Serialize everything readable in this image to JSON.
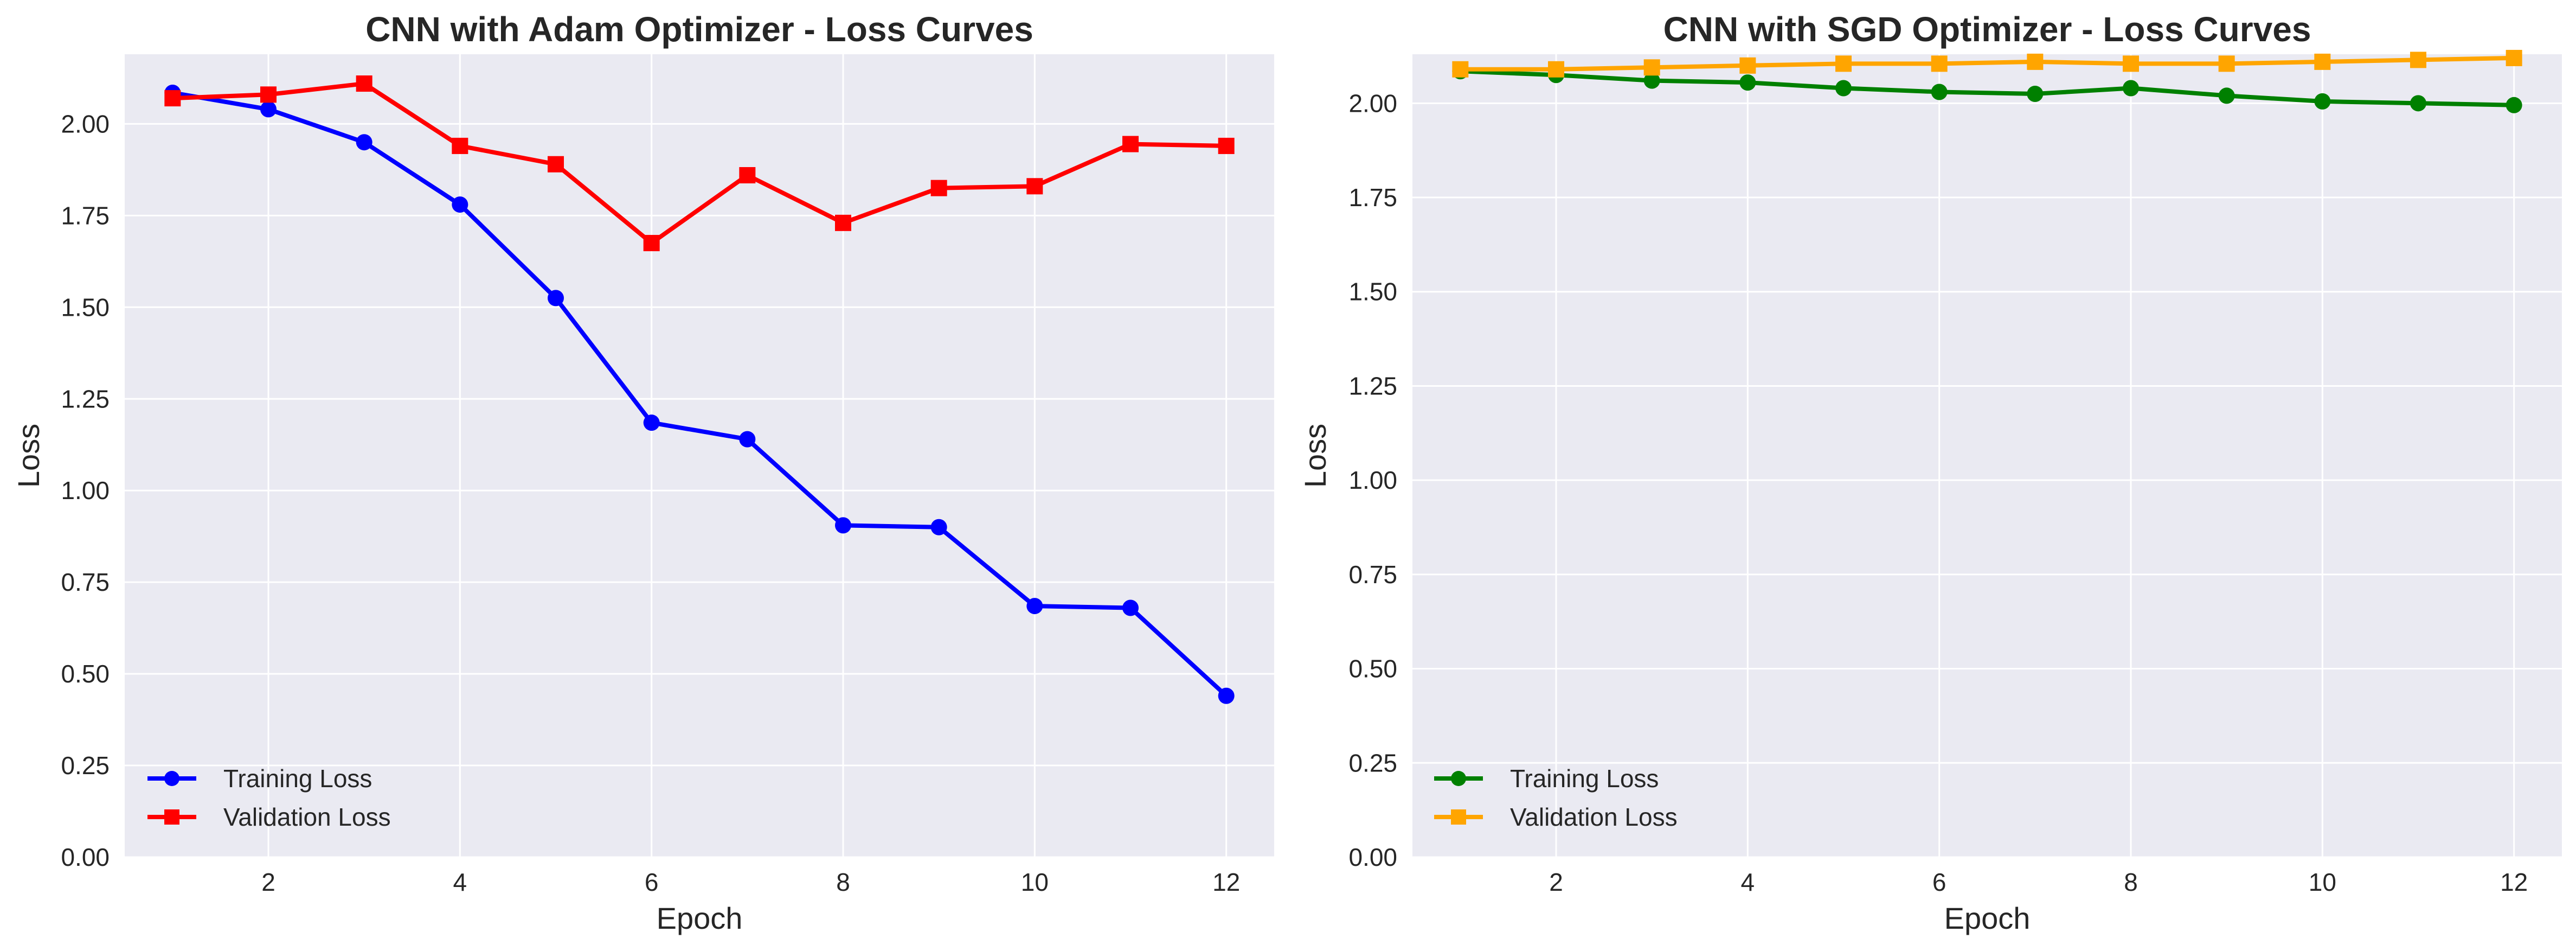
{
  "chart_data": [
    {
      "type": "line",
      "title": "CNN with Adam Optimizer - Loss Curves",
      "xlabel": "Epoch",
      "ylabel": "Loss",
      "xlim": [
        0.5,
        12.5
      ],
      "ylim": [
        0,
        2.19
      ],
      "xticks": [
        2,
        4,
        6,
        8,
        10,
        12
      ],
      "yticks": [
        0.0,
        0.25,
        0.5,
        0.75,
        1.0,
        1.25,
        1.5,
        1.75,
        2.0
      ],
      "grid": true,
      "legend_position": "lower-left",
      "x": [
        1,
        2,
        3,
        4,
        5,
        6,
        7,
        8,
        9,
        10,
        11,
        12
      ],
      "series": [
        {
          "name": "Training Loss",
          "color": "#0000ff",
          "marker": "circle",
          "values": [
            2.085,
            2.04,
            1.95,
            1.78,
            1.525,
            1.185,
            1.14,
            0.905,
            0.9,
            0.685,
            0.68,
            0.44
          ]
        },
        {
          "name": "Validation Loss",
          "color": "#ff0000",
          "marker": "square",
          "values": [
            2.07,
            2.08,
            2.11,
            1.94,
            1.89,
            1.675,
            1.86,
            1.73,
            1.825,
            1.83,
            1.945,
            1.94
          ]
        }
      ]
    },
    {
      "type": "line",
      "title": "CNN with SGD Optimizer - Loss Curves",
      "xlabel": "Epoch",
      "ylabel": "Loss",
      "xlim": [
        0.5,
        12.5
      ],
      "ylim": [
        0,
        2.13
      ],
      "xticks": [
        2,
        4,
        6,
        8,
        10,
        12
      ],
      "yticks": [
        0.0,
        0.25,
        0.5,
        0.75,
        1.0,
        1.25,
        1.5,
        1.75,
        2.0
      ],
      "grid": true,
      "legend_position": "lower-left",
      "x": [
        1,
        2,
        3,
        4,
        5,
        6,
        7,
        8,
        9,
        10,
        11,
        12
      ],
      "series": [
        {
          "name": "Training Loss",
          "color": "#008000",
          "marker": "circle",
          "values": [
            2.085,
            2.075,
            2.06,
            2.055,
            2.04,
            2.03,
            2.025,
            2.04,
            2.02,
            2.005,
            2.0,
            1.995
          ]
        },
        {
          "name": "Validation Loss",
          "color": "#ffa500",
          "marker": "square",
          "values": [
            2.09,
            2.09,
            2.095,
            2.1,
            2.105,
            2.105,
            2.11,
            2.105,
            2.105,
            2.11,
            2.115,
            2.12
          ]
        }
      ]
    }
  ]
}
